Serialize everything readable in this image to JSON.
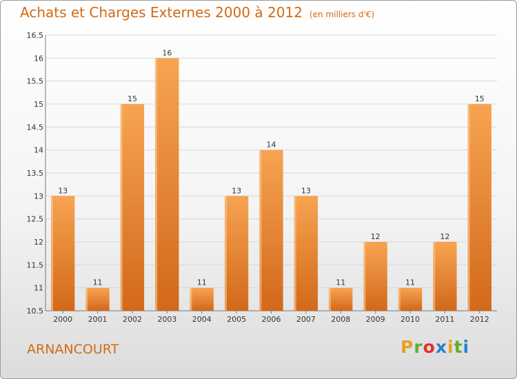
{
  "header": {
    "title": "Achats et Charges Externes 2000 à 2012",
    "unit": "(en milliers d'€)"
  },
  "footer": {
    "commune": "ARNANCOURT",
    "logo": "Proxiti",
    "logo_colors": [
      "#e8a020",
      "#5ab030",
      "#e03030",
      "#2a7fd0",
      "#e8a020",
      "#5ab030",
      "#2a7fd0"
    ]
  },
  "chart_data": {
    "type": "bar",
    "title": "Achats et Charges Externes 2000 à 2012",
    "subtitle": "(en milliers d'€)",
    "categories": [
      "2000",
      "2001",
      "2002",
      "2003",
      "2004",
      "2005",
      "2006",
      "2007",
      "2008",
      "2009",
      "2010",
      "2011",
      "2012"
    ],
    "values": [
      13,
      11,
      15,
      16,
      11,
      13,
      14,
      13,
      11,
      12,
      11,
      12,
      15
    ],
    "data_labels": [
      "13",
      "11",
      "15",
      "16",
      "11",
      "13",
      "14",
      "13",
      "11",
      "12",
      "11",
      "12",
      "15"
    ],
    "ylim": [
      10.5,
      16.5
    ],
    "yticks": [
      10.5,
      11,
      11.5,
      12,
      12.5,
      13,
      13.5,
      14,
      14.5,
      15,
      15.5,
      16,
      16.5
    ],
    "ytick_labels": [
      "10.5",
      "11",
      "11.5",
      "12",
      "12.5",
      "13",
      "13.5",
      "14",
      "14.5",
      "15",
      "15.5",
      "16",
      "16.5"
    ],
    "grid": true,
    "colors": {
      "bar_light": "#f7a452",
      "bar_dark": "#d2681a",
      "text": "#d36a12",
      "grid": "#d8d8d8"
    }
  }
}
